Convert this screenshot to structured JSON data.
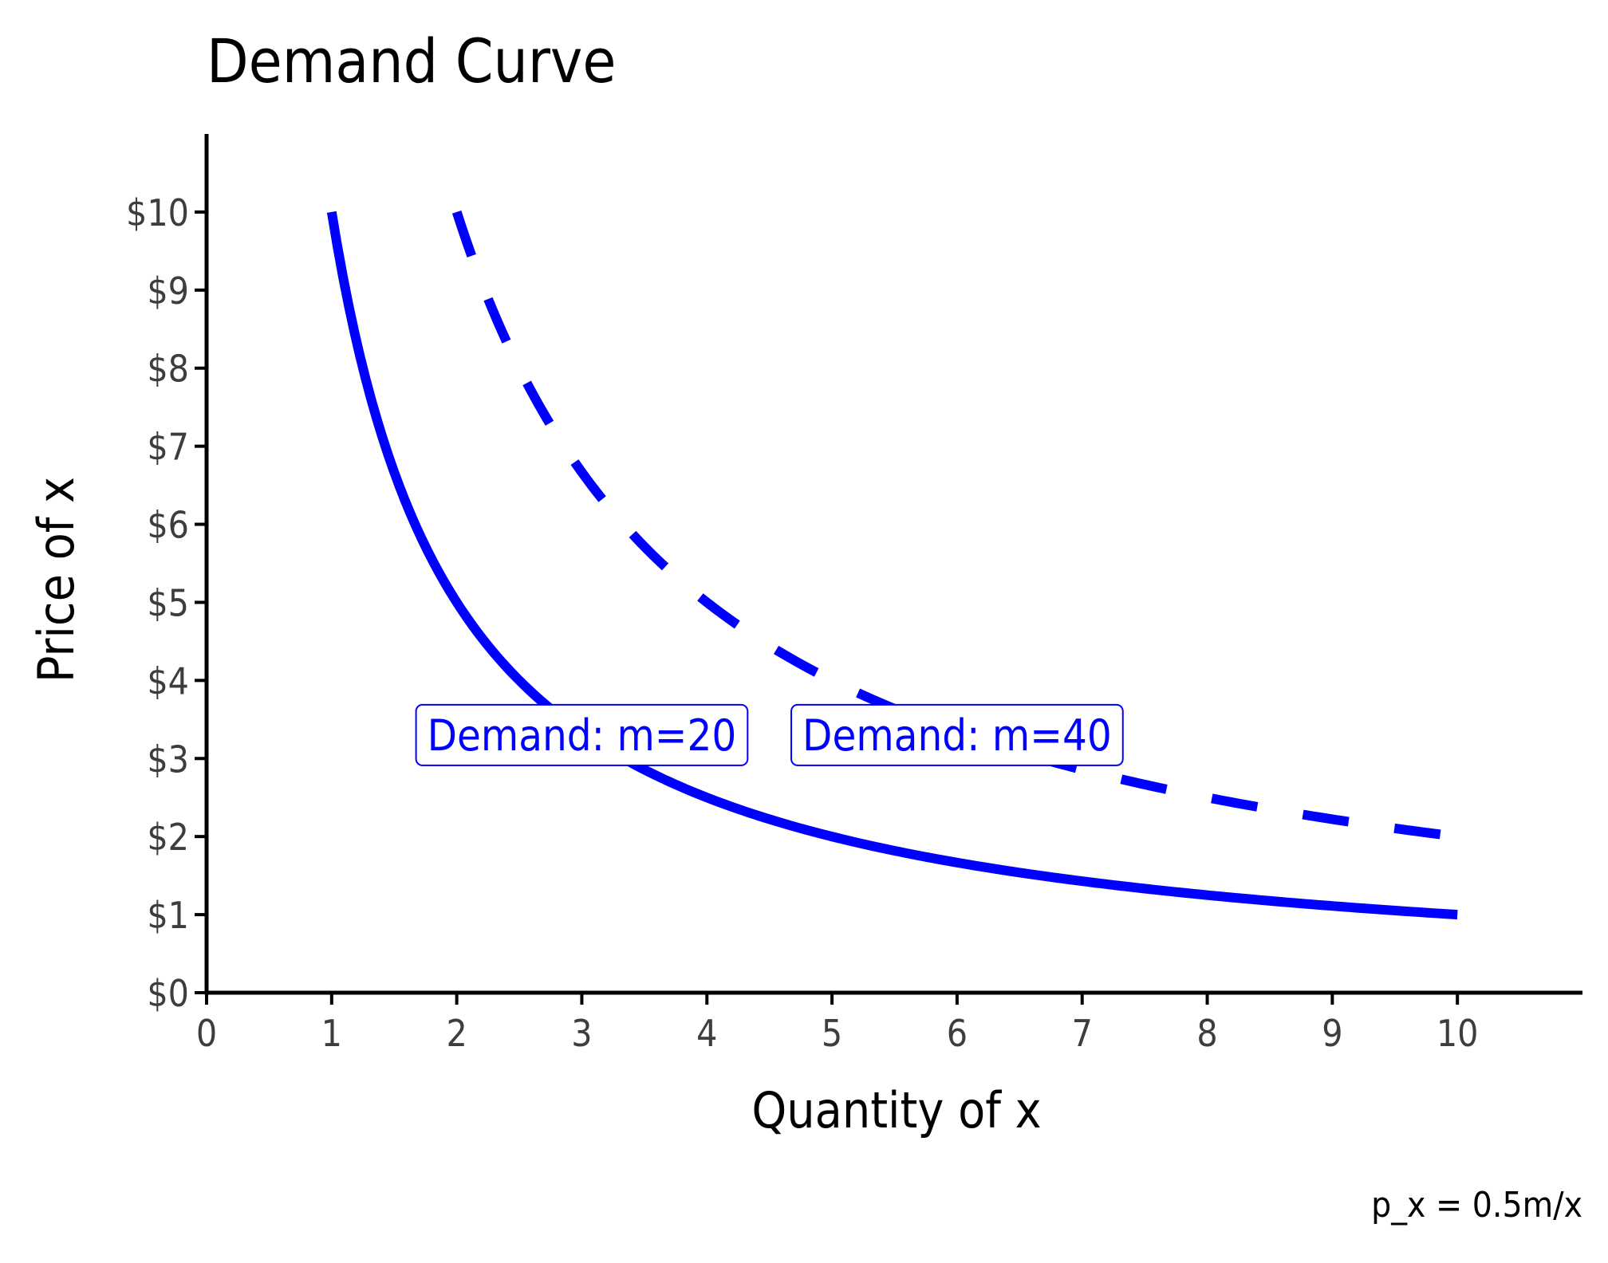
{
  "chart_data": {
    "type": "line",
    "title": "Demand Curve",
    "xlabel": "Quantity of x",
    "ylabel": "Price of x",
    "caption": "p_x = 0.5m/x",
    "xlim": [
      0,
      11
    ],
    "ylim": [
      0,
      11
    ],
    "x_ticks": [
      0,
      1,
      2,
      3,
      4,
      5,
      6,
      7,
      8,
      9,
      10
    ],
    "x_tick_labels": [
      "0",
      "1",
      "2",
      "3",
      "4",
      "5",
      "6",
      "7",
      "8",
      "9",
      "10"
    ],
    "y_ticks": [
      0,
      1,
      2,
      3,
      4,
      5,
      6,
      7,
      8,
      9,
      10
    ],
    "y_tick_labels": [
      "$0",
      "$1",
      "$2",
      "$3",
      "$4",
      "$5",
      "$6",
      "$7",
      "$8",
      "$9",
      "$10"
    ],
    "grid": false,
    "color": "#0000ff",
    "series": [
      {
        "m": 20,
        "style": "solid",
        "x": [
          1,
          1.25,
          1.5,
          1.75,
          2,
          2.5,
          3,
          3.5,
          4,
          4.5,
          5,
          5.5,
          6,
          6.5,
          7,
          7.5,
          8,
          8.5,
          9,
          9.5,
          10
        ],
        "y": [
          10,
          8,
          6.67,
          5.71,
          5,
          4,
          3.33,
          2.86,
          2.5,
          2.22,
          2,
          1.82,
          1.67,
          1.54,
          1.43,
          1.33,
          1.25,
          1.18,
          1.11,
          1.05,
          1
        ]
      },
      {
        "m": 40,
        "style": "dashed",
        "x": [
          2,
          2.25,
          2.5,
          2.75,
          3,
          3.5,
          4,
          4.5,
          5,
          5.5,
          6,
          6.5,
          7,
          7.5,
          8,
          8.5,
          9,
          9.5,
          10
        ],
        "y": [
          10,
          8.89,
          8,
          7.27,
          6.67,
          5.71,
          5,
          4.44,
          4,
          3.64,
          3.33,
          3.08,
          2.86,
          2.67,
          2.5,
          2.35,
          2.22,
          2.11,
          2
        ]
      }
    ],
    "annotations": [
      {
        "text": "Demand: m=20",
        "x": 3,
        "y": 3.3
      },
      {
        "text": "Demand: m=40",
        "x": 6,
        "y": 3.3
      }
    ]
  }
}
